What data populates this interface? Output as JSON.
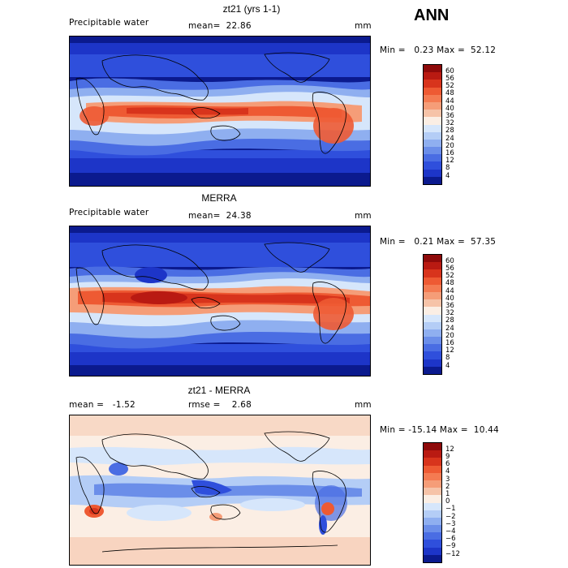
{
  "season": "ANN",
  "panels": [
    {
      "title": "zt21 (yrs 1-1)",
      "left_label": "Precipitable water",
      "mid_label": "mean=  22.86",
      "units": "mm",
      "minmax": "Min =   0.23 Max =  52.12",
      "colorbar": {
        "labels": [
          "60",
          "56",
          "52",
          "48",
          "44",
          "40",
          "36",
          "32",
          "28",
          "24",
          "20",
          "16",
          "12",
          "8",
          "4"
        ],
        "colors": [
          "#8e0a0a",
          "#b91a12",
          "#d8341c",
          "#ee5a33",
          "#f47b52",
          "#f59d78",
          "#f6c3a8",
          "#fbeee4",
          "#d6e6fb",
          "#b4cdf6",
          "#8faff0",
          "#6b8ee9",
          "#4a6de3",
          "#2f4fdc",
          "#1d35c8",
          "#0b1a8e"
        ]
      },
      "map_style": "pw1"
    },
    {
      "title": "MERRA",
      "left_label": "Precipitable water",
      "mid_label": "mean=  24.38",
      "units": "mm",
      "minmax": "Min =   0.21 Max =  57.35",
      "colorbar": {
        "labels": [
          "60",
          "56",
          "52",
          "48",
          "44",
          "40",
          "36",
          "32",
          "28",
          "24",
          "20",
          "16",
          "12",
          "8",
          "4"
        ],
        "colors": [
          "#8e0a0a",
          "#b91a12",
          "#d8341c",
          "#ee5a33",
          "#f47b52",
          "#f59d78",
          "#f6c3a8",
          "#fbeee4",
          "#d6e6fb",
          "#b4cdf6",
          "#8faff0",
          "#6b8ee9",
          "#4a6de3",
          "#2f4fdc",
          "#1d35c8",
          "#0b1a8e"
        ]
      },
      "map_style": "pw2"
    },
    {
      "title": "zt21 - MERRA",
      "left_label": "mean =   -1.52",
      "mid_label": "rmse =    2.68",
      "units": "mm",
      "minmax": "Min = -15.14 Max =  10.44",
      "colorbar": {
        "labels": [
          "12",
          "9",
          "6",
          "4",
          "3",
          "2",
          "1",
          "0",
          "−1",
          "−2",
          "−3",
          "−4",
          "−6",
          "−9",
          "−12"
        ],
        "colors": [
          "#8e0a0a",
          "#b91a12",
          "#d8341c",
          "#ee5a33",
          "#f47b52",
          "#f59d78",
          "#f6c3a8",
          "#fbeee4",
          "#d6e6fb",
          "#b4cdf6",
          "#8faff0",
          "#6b8ee9",
          "#4a6de3",
          "#2f4fdc",
          "#1d35c8",
          "#0b1a8e"
        ]
      },
      "map_style": "diff"
    }
  ]
}
